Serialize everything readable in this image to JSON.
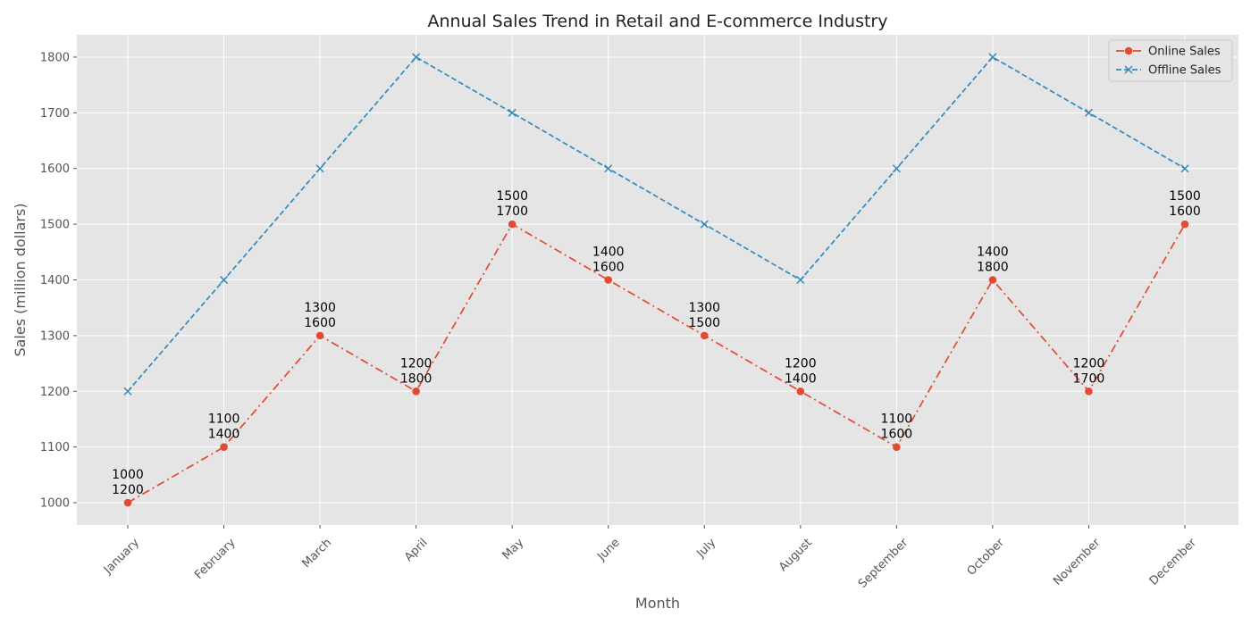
{
  "chart_data": {
    "type": "line",
    "title": "Annual Sales Trend in Retail and E-commerce Industry",
    "xlabel": "Month",
    "ylabel": "Sales (million dollars)",
    "categories": [
      "January",
      "February",
      "March",
      "April",
      "May",
      "June",
      "July",
      "August",
      "September",
      "October",
      "November",
      "December"
    ],
    "series": [
      {
        "name": "Online Sales",
        "values": [
          1000,
          1100,
          1300,
          1200,
          1500,
          1400,
          1300,
          1200,
          1100,
          1400,
          1200,
          1500
        ],
        "color": "#e24a33",
        "linestyle": "dashdot",
        "marker": "circle"
      },
      {
        "name": "Offline Sales",
        "values": [
          1200,
          1400,
          1600,
          1800,
          1700,
          1600,
          1500,
          1400,
          1600,
          1800,
          1700,
          1600
        ],
        "color": "#348abd",
        "linestyle": "dashed",
        "marker": "x"
      }
    ],
    "annotations": [
      {
        "category": "January",
        "lines": [
          "1000",
          "1200"
        ]
      },
      {
        "category": "February",
        "lines": [
          "1100",
          "1400"
        ]
      },
      {
        "category": "March",
        "lines": [
          "1300",
          "1600"
        ]
      },
      {
        "category": "April",
        "lines": [
          "1200",
          "1800"
        ]
      },
      {
        "category": "May",
        "lines": [
          "1500",
          "1700"
        ]
      },
      {
        "category": "June",
        "lines": [
          "1400",
          "1600"
        ]
      },
      {
        "category": "July",
        "lines": [
          "1300",
          "1500"
        ]
      },
      {
        "category": "August",
        "lines": [
          "1200",
          "1400"
        ]
      },
      {
        "category": "September",
        "lines": [
          "1100",
          "1600"
        ]
      },
      {
        "category": "October",
        "lines": [
          "1400",
          "1800"
        ]
      },
      {
        "category": "November",
        "lines": [
          "1200",
          "1700"
        ]
      },
      {
        "category": "December",
        "lines": [
          "1500",
          "1600"
        ]
      }
    ],
    "yticks": [
      1000,
      1100,
      1200,
      1300,
      1400,
      1500,
      1600,
      1700,
      1800
    ],
    "ylim": [
      960,
      1840
    ],
    "grid": true,
    "legend_position": "top-right",
    "background_color": "#e5e5e5"
  }
}
